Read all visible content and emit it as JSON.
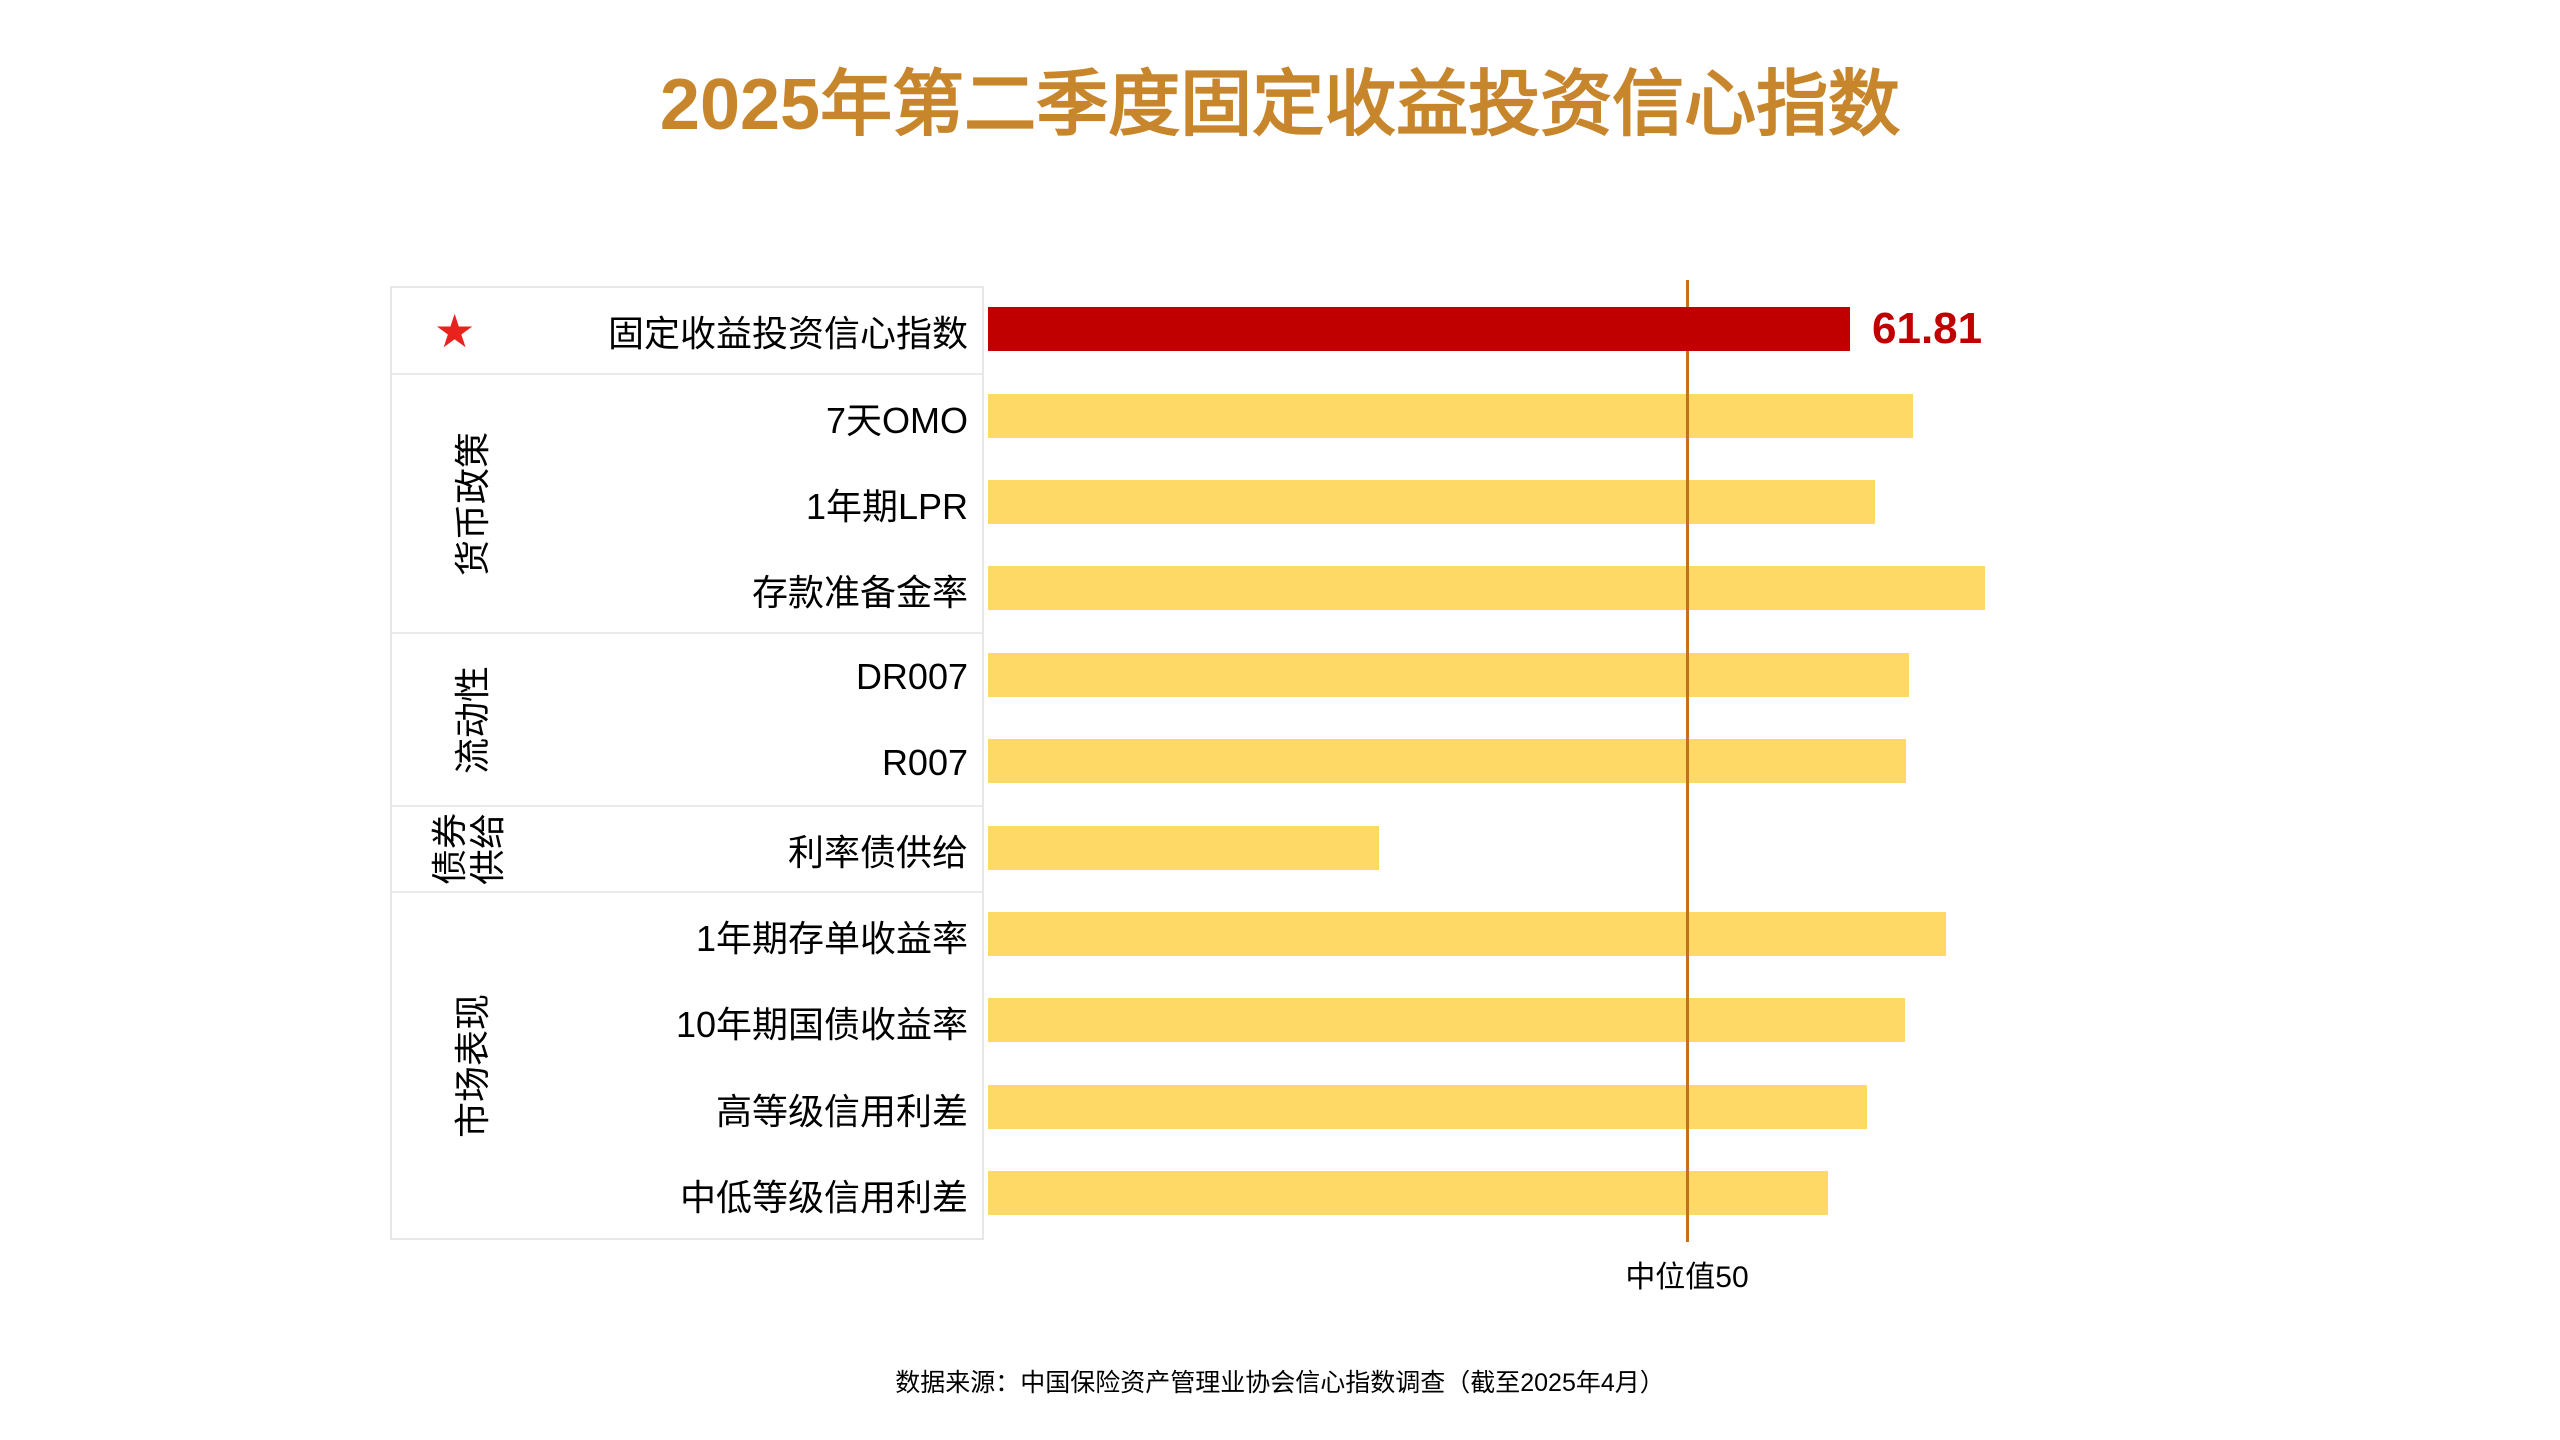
{
  "title": {
    "text": "2025年第二季度固定收益投资信心指数",
    "color": "#C8862C"
  },
  "icons": {
    "star": "★"
  },
  "footer": {
    "source": "数据来源：中国保险资产管理业协会信心指数调查（截至2025年4月）"
  },
  "chart_data": {
    "type": "bar",
    "orientation": "horizontal",
    "x_range": [
      0,
      120
    ],
    "gridlines": false,
    "legend": "none",
    "bar_color": "#FFD966",
    "highlight_color": "#C00000",
    "median_line": {
      "value": 50,
      "label": "中位值50",
      "color": "#C4711C"
    },
    "groups": [
      {
        "name": "",
        "rows": [
          {
            "label": "固定收益投资信心指数",
            "value": 61.81,
            "value_label": "61.81",
            "color": "#C00000",
            "starred": true
          }
        ]
      },
      {
        "name": "货币政策",
        "rows": [
          {
            "label": "7天OMO",
            "value": 66.3
          },
          {
            "label": "1年期LPR",
            "value": 63.6
          },
          {
            "label": "存款准备金率",
            "value": 71.5
          }
        ]
      },
      {
        "name": "流动性",
        "rows": [
          {
            "label": "DR007",
            "value": 66.0
          },
          {
            "label": "R007",
            "value": 65.8
          }
        ]
      },
      {
        "name": "债券供给",
        "rows": [
          {
            "label": "利率债供给",
            "value": 28.0
          }
        ]
      },
      {
        "name": "市场表现",
        "rows": [
          {
            "label": "1年期存单收益率",
            "value": 68.7
          },
          {
            "label": "10年期国债收益率",
            "value": 65.7
          },
          {
            "label": "高等级信用利差",
            "value": 63.0
          },
          {
            "label": "中低等级信用利差",
            "value": 60.2
          }
        ]
      }
    ]
  }
}
